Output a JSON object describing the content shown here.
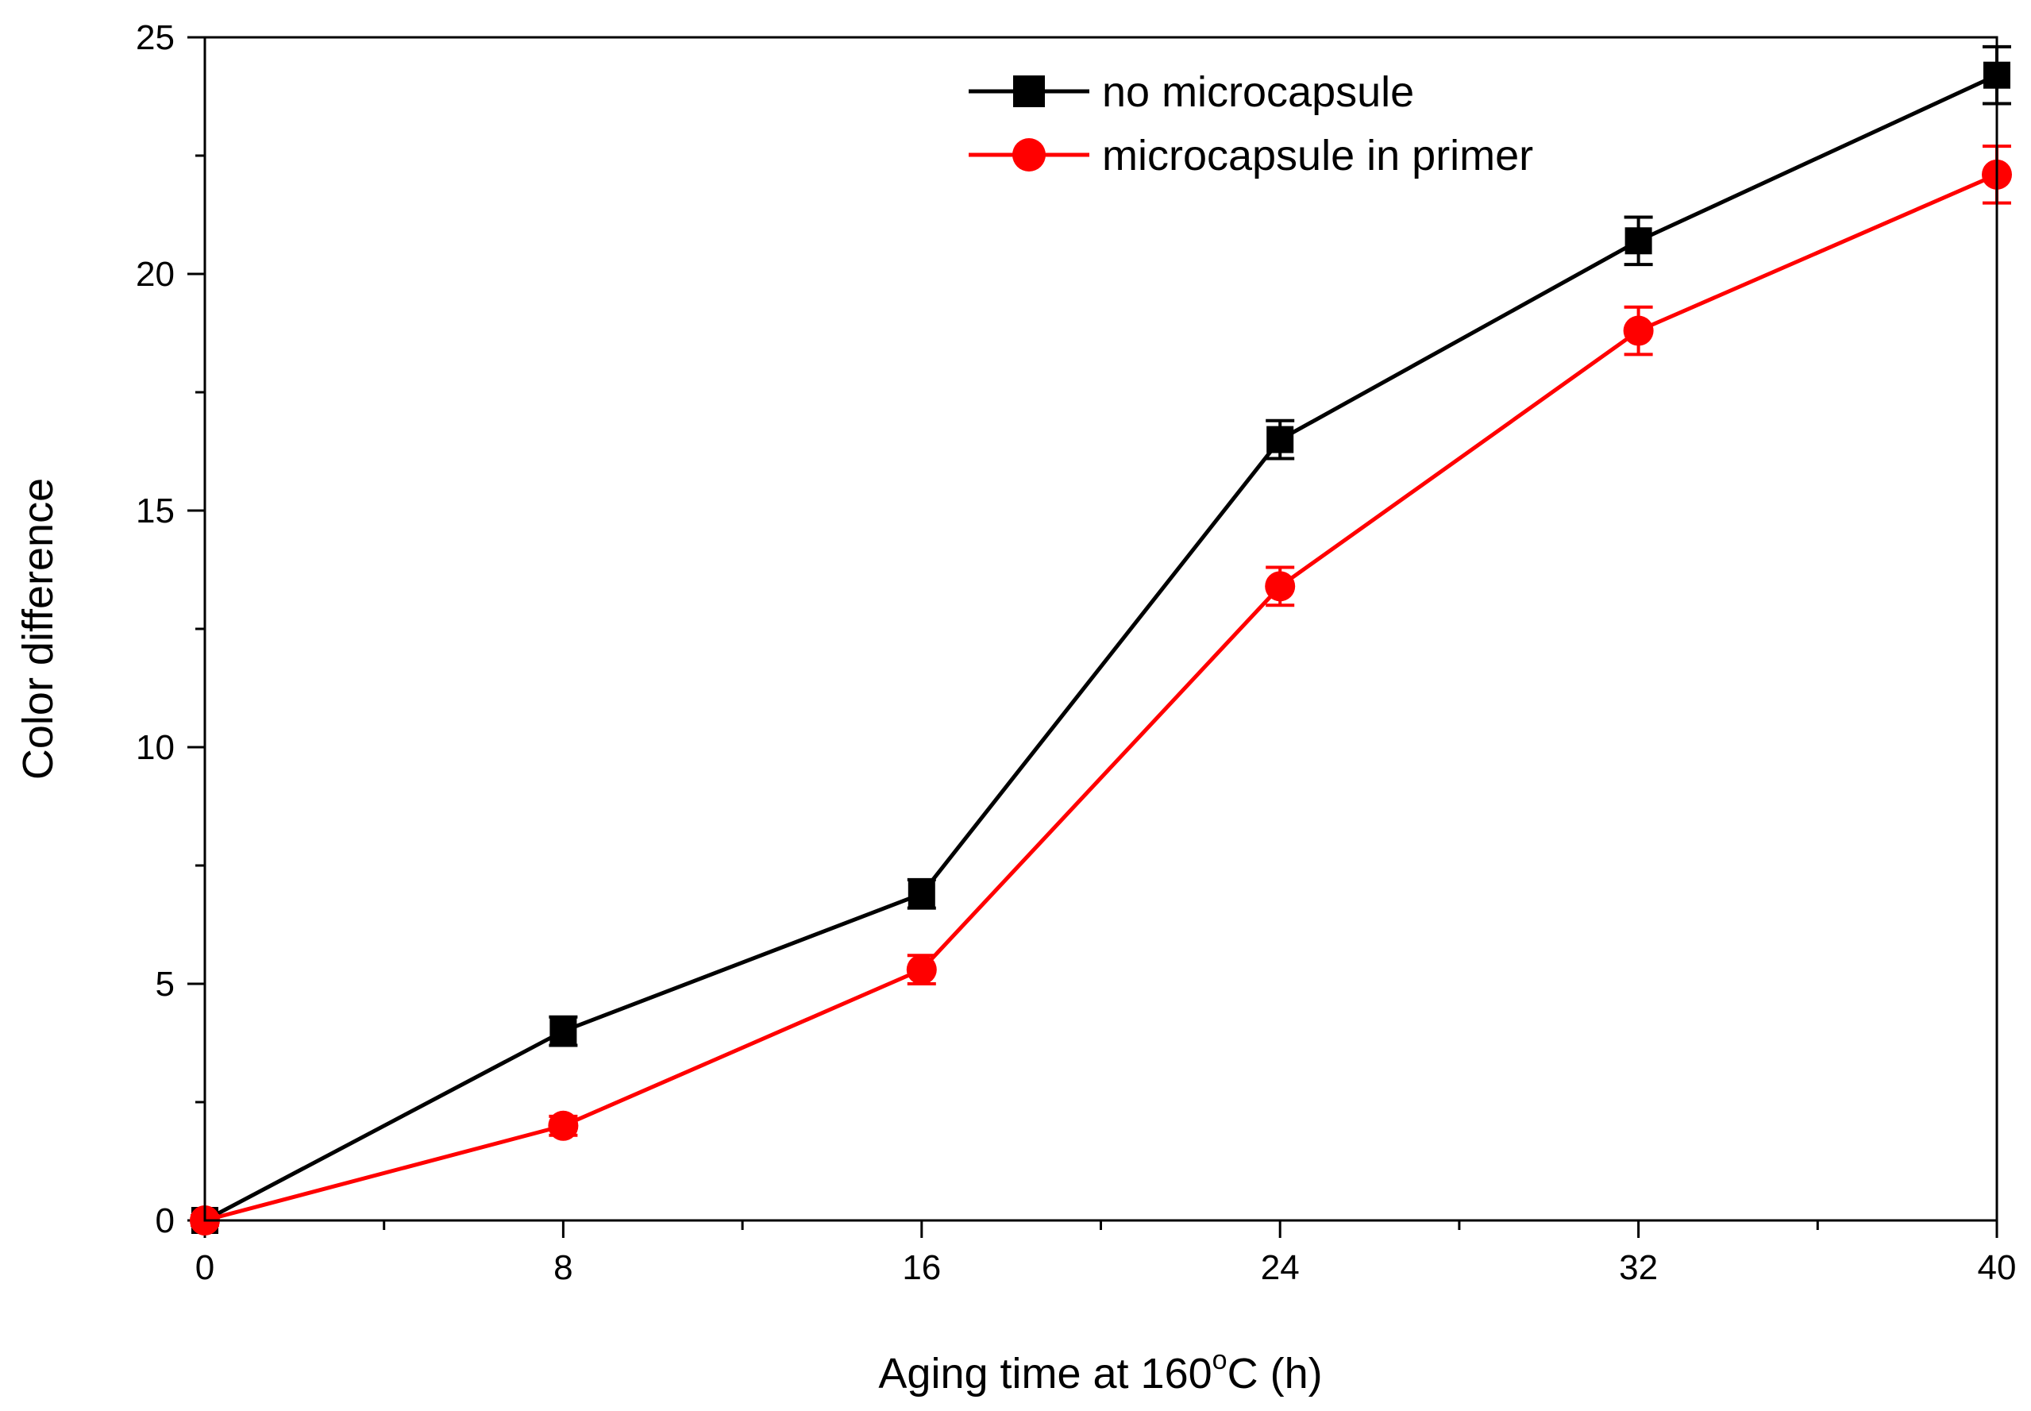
{
  "chart_data": {
    "type": "line",
    "title": "",
    "xlabel": {
      "prefix": "Aging time at 160",
      "sup": "o",
      "suffix": "C (h)"
    },
    "ylabel": "Color difference",
    "xlim": [
      0,
      40
    ],
    "ylim": [
      0,
      25
    ],
    "xticks_major": [
      0,
      8,
      16,
      24,
      32,
      40
    ],
    "xticks_minor": [
      4,
      12,
      20,
      28,
      36
    ],
    "yticks_major": [
      0,
      5,
      10,
      15,
      20,
      25
    ],
    "yticks_minor": [
      2.5,
      7.5,
      12.5,
      17.5,
      22.5
    ],
    "legend_position": "top-right",
    "series": [
      {
        "name": "no microcapsule",
        "color": "#000000",
        "marker": "square",
        "x": [
          0,
          8,
          16,
          24,
          32,
          40
        ],
        "y": [
          0,
          4.0,
          6.9,
          16.5,
          20.7,
          24.2
        ],
        "err": [
          0.1,
          0.3,
          0.3,
          0.4,
          0.5,
          0.6
        ]
      },
      {
        "name": "microcapsule in primer",
        "color": "#ff0000",
        "marker": "circle",
        "x": [
          0,
          8,
          16,
          24,
          32,
          40
        ],
        "y": [
          0,
          2.0,
          5.3,
          13.4,
          18.8,
          22.1
        ],
        "err": [
          0.1,
          0.2,
          0.3,
          0.4,
          0.5,
          0.6
        ]
      }
    ]
  }
}
